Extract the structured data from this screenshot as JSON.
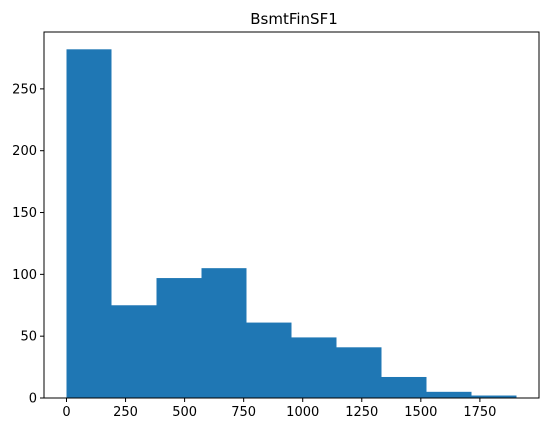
{
  "chart_data": {
    "type": "bar",
    "title": "BsmtFinSF1",
    "xlabel": "",
    "ylabel": "",
    "color": "#1f77b4",
    "bin_edges": [
      0,
      190.5,
      381,
      571.5,
      762,
      952.5,
      1143,
      1333.5,
      1524,
      1714.5,
      1905
    ],
    "values": [
      282,
      75,
      97,
      105,
      61,
      49,
      41,
      17,
      5,
      2
    ],
    "xlim": [
      -95.25,
      2000.25
    ],
    "ylim": [
      0,
      296
    ],
    "x_ticks": [
      0,
      250,
      500,
      750,
      1000,
      1250,
      1500,
      1750
    ],
    "y_ticks": [
      0,
      50,
      100,
      150,
      200,
      250
    ],
    "grid": false
  }
}
